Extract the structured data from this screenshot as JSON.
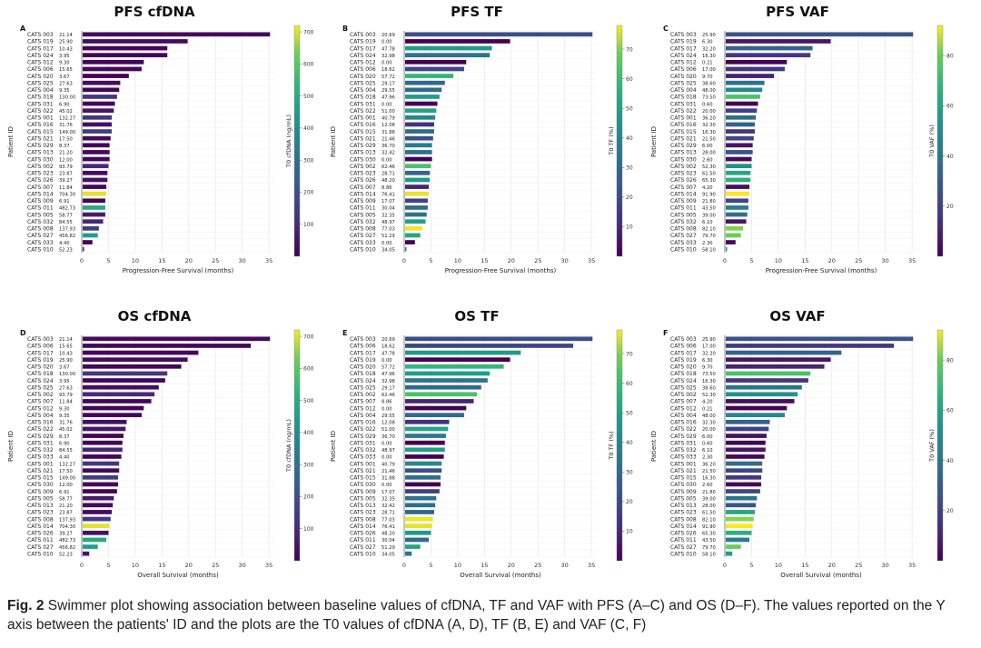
{
  "caption": {
    "label": "Fig. 2",
    "text": "Swimmer plot showing association between baseline values of cfDNA, TF and VAF with PFS (A–C) and OS (D–F). The values reported on the Y axis between the patients' ID and the plots are the T0 values of cfDNA (A, D), TF (B, E) and VAF (C, F)"
  },
  "chart_data": [
    {
      "type": "bar",
      "orientation": "horizontal",
      "panel": "A",
      "title": "PFS cfDNA",
      "xlabel": "Progression-Free Survival (months)",
      "ylabel": "Patient ID",
      "xlim": [
        0,
        36
      ],
      "xticks": [
        0,
        5,
        10,
        15,
        20,
        25,
        30,
        35
      ],
      "colorbar": {
        "label": "T0 cfDNA (ng/mL)",
        "min": 0,
        "max": 720,
        "ticks": [
          100,
          200,
          300,
          400,
          500,
          600,
          700
        ]
      },
      "categories": [
        "CATS 003",
        "CATS 019",
        "CATS 017",
        "CATS 024",
        "CATS 012",
        "CATS 006",
        "CATS 020",
        "CATS 025",
        "CATS 004",
        "CATS 018",
        "CATS 031",
        "CATS 022",
        "CATS 001",
        "CATS 016",
        "CATS 015",
        "CATS 021",
        "CATS 029",
        "CATS 013",
        "CATS 030",
        "CATS 002",
        "CATS 023",
        "CATS 026",
        "CATS 007",
        "CATS 014",
        "CATS 009",
        "CATS 011",
        "CATS 005",
        "CATS 032",
        "CATS 008",
        "CATS 027",
        "CATS 033",
        "CATS 010"
      ],
      "values": [
        35.2,
        19.8,
        16.0,
        16.0,
        11.6,
        11.2,
        8.8,
        7.2,
        7.0,
        6.6,
        6.2,
        6.0,
        5.6,
        5.6,
        5.6,
        5.4,
        5.2,
        5.2,
        5.2,
        5.0,
        4.8,
        4.8,
        4.6,
        4.6,
        4.4,
        4.4,
        4.4,
        4.0,
        3.2,
        3.0,
        2.0,
        0.3
      ],
      "t0_values": [
        "21.14",
        "25.90",
        "10.43",
        "3.95",
        "9.30",
        "15.65",
        "3.67",
        "27.63",
        "9.35",
        "130.00",
        "6.90",
        "45.02",
        "132.27",
        "31.76",
        "149.00",
        "17.50",
        "8.37",
        "21.20",
        "12.00",
        "93.79",
        "23.87",
        "39.27",
        "11.84",
        "704.30",
        "6.91",
        "482.73",
        "58.77",
        "84.55",
        "137.93",
        "456.82",
        "4.40",
        "52.23"
      ]
    },
    {
      "type": "bar",
      "orientation": "horizontal",
      "panel": "B",
      "title": "PFS TF",
      "xlabel": "Progression-Free Survival (months)",
      "ylabel": "Patient ID",
      "xlim": [
        0,
        36
      ],
      "xticks": [
        0,
        5,
        10,
        15,
        20,
        25,
        30,
        35
      ],
      "colorbar": {
        "label": "T0 TF (%)",
        "min": 0,
        "max": 78,
        "ticks": [
          10,
          20,
          30,
          40,
          50,
          60,
          70
        ]
      },
      "categories": [
        "CATS 003",
        "CATS 019",
        "CATS 017",
        "CATS 024",
        "CATS 012",
        "CATS 006",
        "CATS 020",
        "CATS 025",
        "CATS 004",
        "CATS 018",
        "CATS 031",
        "CATS 022",
        "CATS 001",
        "CATS 016",
        "CATS 015",
        "CATS 021",
        "CATS 029",
        "CATS 013",
        "CATS 030",
        "CATS 002",
        "CATS 023",
        "CATS 026",
        "CATS 007",
        "CATS 014",
        "CATS 009",
        "CATS 011",
        "CATS 005",
        "CATS 032",
        "CATS 008",
        "CATS 027",
        "CATS 033",
        "CATS 010"
      ],
      "values": [
        35.2,
        19.8,
        16.4,
        16.0,
        11.6,
        11.2,
        9.2,
        7.6,
        7.0,
        6.6,
        6.2,
        6.0,
        5.8,
        5.6,
        5.6,
        5.4,
        5.2,
        5.2,
        5.2,
        5.0,
        4.8,
        4.8,
        4.6,
        4.6,
        4.4,
        4.4,
        4.2,
        4.0,
        3.4,
        3.0,
        2.0,
        0.3
      ],
      "t0_values": [
        "20.69",
        "0.00",
        "47.78",
        "32.98",
        "0.00",
        "18.62",
        "57.72",
        "29.17",
        "29.55",
        "47.96",
        "0.00",
        "51.00",
        "40.79",
        "12.08",
        "31.88",
        "21.46",
        "36.70",
        "32.42",
        "0.00",
        "62.46",
        "28.71",
        "48.20",
        "8.86",
        "76.41",
        "17.07",
        "30.04",
        "32.35",
        "48.97",
        "77.03",
        "51.29",
        "0.00",
        "34.05"
      ]
    },
    {
      "type": "bar",
      "orientation": "horizontal",
      "panel": "C",
      "title": "PFS VAF",
      "xlabel": "Progression-Free Survival (months)",
      "ylabel": "Patient ID",
      "xlim": [
        0,
        36
      ],
      "xticks": [
        0,
        5,
        10,
        15,
        20,
        25,
        30,
        35
      ],
      "colorbar": {
        "label": "T0 VAF (%)",
        "min": 0,
        "max": 92,
        "ticks": [
          20,
          40,
          60,
          80
        ]
      },
      "categories": [
        "CATS 003",
        "CATS 019",
        "CATS 017",
        "CATS 024",
        "CATS 012",
        "CATS 006",
        "CATS 020",
        "CATS 025",
        "CATS 004",
        "CATS 018",
        "CATS 031",
        "CATS 022",
        "CATS 001",
        "CATS 016",
        "CATS 015",
        "CATS 021",
        "CATS 029",
        "CATS 013",
        "CATS 030",
        "CATS 002",
        "CATS 023",
        "CATS 026",
        "CATS 007",
        "CATS 014",
        "CATS 009",
        "CATS 011",
        "CATS 005",
        "CATS 032",
        "CATS 008",
        "CATS 027",
        "CATS 033",
        "CATS 010"
      ],
      "values": [
        35.2,
        19.8,
        16.4,
        16.0,
        11.6,
        11.2,
        9.2,
        7.4,
        7.0,
        6.6,
        6.2,
        6.0,
        5.8,
        5.6,
        5.6,
        5.4,
        5.2,
        5.2,
        5.0,
        5.0,
        4.8,
        4.8,
        4.6,
        4.6,
        4.4,
        4.4,
        4.2,
        4.0,
        3.4,
        3.0,
        2.0,
        0.3
      ],
      "t0_values": [
        "25.90",
        "6.30",
        "32.20",
        "16.30",
        "0.21",
        "17.00",
        "9.70",
        "38.60",
        "48.00",
        "73.50",
        "0.60",
        "20.00",
        "36.20",
        "32.30",
        "16.30",
        "21.50",
        "6.00",
        "28.00",
        "2.60",
        "52.30",
        "61.50",
        "65.30",
        "4.20",
        "91.90",
        "21.80",
        "43.50",
        "39.00",
        "6.10",
        "82.10",
        "79.70",
        "2.30",
        "58.10"
      ]
    },
    {
      "type": "bar",
      "orientation": "horizontal",
      "panel": "D",
      "title": "OS cfDNA",
      "xlabel": "Overall Survival (months)",
      "ylabel": "Patient ID",
      "xlim": [
        0,
        36
      ],
      "xticks": [
        0,
        5,
        10,
        15,
        20,
        25,
        30,
        35
      ],
      "colorbar": {
        "label": "T0 cfDNA (ng/mL)",
        "min": 0,
        "max": 720,
        "ticks": [
          100,
          200,
          300,
          400,
          500,
          600,
          700
        ]
      },
      "categories": [
        "CATS 003",
        "CATS 006",
        "CATS 017",
        "CATS 019",
        "CATS 020",
        "CATS 018",
        "CATS 024",
        "CATS 025",
        "CATS 002",
        "CATS 007",
        "CATS 012",
        "CATS 004",
        "CATS 016",
        "CATS 022",
        "CATS 029",
        "CATS 031",
        "CATS 032",
        "CATS 033",
        "CATS 001",
        "CATS 021",
        "CATS 015",
        "CATS 030",
        "CATS 009",
        "CATS 005",
        "CATS 013",
        "CATS 023",
        "CATS 008",
        "CATS 014",
        "CATS 026",
        "CATS 011",
        "CATS 027",
        "CATS 010"
      ],
      "values": [
        35.2,
        31.6,
        21.8,
        19.8,
        18.6,
        16.0,
        15.6,
        14.4,
        13.6,
        13.0,
        11.6,
        11.2,
        8.4,
        8.2,
        7.8,
        7.6,
        7.6,
        7.4,
        7.0,
        7.0,
        6.8,
        6.8,
        6.6,
        6.0,
        5.8,
        5.6,
        5.4,
        5.2,
        5.0,
        4.6,
        3.0,
        1.4
      ],
      "t0_values": [
        "21.14",
        "15.65",
        "10.43",
        "25.90",
        "3.67",
        "130.00",
        "3.95",
        "27.63",
        "93.79",
        "11.84",
        "9.30",
        "9.35",
        "31.76",
        "45.02",
        "8.37",
        "6.90",
        "84.55",
        "4.40",
        "132.27",
        "17.50",
        "149.00",
        "12.00",
        "6.91",
        "58.77",
        "21.20",
        "23.87",
        "137.93",
        "704.30",
        "39.27",
        "482.73",
        "456.82",
        "52.23"
      ]
    },
    {
      "type": "bar",
      "orientation": "horizontal",
      "panel": "E",
      "title": "OS TF",
      "xlabel": "Overall Survival (months)",
      "ylabel": "Patient ID",
      "xlim": [
        0,
        36
      ],
      "xticks": [
        0,
        5,
        10,
        15,
        20,
        25,
        30,
        35
      ],
      "colorbar": {
        "label": "T0 TF (%)",
        "min": 0,
        "max": 78,
        "ticks": [
          10,
          20,
          30,
          40,
          50,
          60,
          70
        ]
      },
      "categories": [
        "CATS 003",
        "CATS 006",
        "CATS 017",
        "CATS 019",
        "CATS 020",
        "CATS 018",
        "CATS 024",
        "CATS 025",
        "CATS 002",
        "CATS 007",
        "CATS 012",
        "CATS 004",
        "CATS 016",
        "CATS 022",
        "CATS 029",
        "CATS 031",
        "CATS 032",
        "CATS 033",
        "CATS 001",
        "CATS 021",
        "CATS 015",
        "CATS 030",
        "CATS 009",
        "CATS 005",
        "CATS 013",
        "CATS 023",
        "CATS 008",
        "CATS 014",
        "CATS 026",
        "CATS 011",
        "CATS 027",
        "CATS 010"
      ],
      "values": [
        35.2,
        31.6,
        21.8,
        19.8,
        18.6,
        16.0,
        15.6,
        14.4,
        13.6,
        13.0,
        11.6,
        11.2,
        8.4,
        8.2,
        7.8,
        7.6,
        7.6,
        7.4,
        7.0,
        7.0,
        6.8,
        6.8,
        6.6,
        6.0,
        5.8,
        5.6,
        5.4,
        5.2,
        5.0,
        4.6,
        3.0,
        1.4
      ],
      "t0_values": [
        "20.69",
        "18.62",
        "47.78",
        "0.00",
        "57.72",
        "47.96",
        "32.98",
        "29.17",
        "62.46",
        "8.86",
        "0.00",
        "29.55",
        "12.08",
        "51.00",
        "36.70",
        "0.00",
        "48.97",
        "0.00",
        "40.79",
        "21.46",
        "31.88",
        "0.00",
        "17.07",
        "32.35",
        "32.42",
        "28.71",
        "77.03",
        "76.41",
        "48.20",
        "30.04",
        "51.29",
        "34.05"
      ]
    },
    {
      "type": "bar",
      "orientation": "horizontal",
      "panel": "F",
      "title": "OS VAF",
      "xlabel": "Overall Survival (months)",
      "ylabel": "Patient ID",
      "xlim": [
        0,
        36
      ],
      "xticks": [
        0,
        5,
        10,
        15,
        20,
        25,
        30,
        35
      ],
      "colorbar": {
        "label": "T0 VAF (%)",
        "min": 0,
        "max": 92,
        "ticks": [
          20,
          40,
          60,
          80
        ]
      },
      "categories": [
        "CATS 003",
        "CATS 006",
        "CATS 017",
        "CATS 019",
        "CATS 020",
        "CATS 018",
        "CATS 024",
        "CATS 025",
        "CATS 002",
        "CATS 007",
        "CATS 012",
        "CATS 004",
        "CATS 016",
        "CATS 022",
        "CATS 029",
        "CATS 031",
        "CATS 032",
        "CATS 033",
        "CATS 001",
        "CATS 021",
        "CATS 015",
        "CATS 030",
        "CATS 009",
        "CATS 005",
        "CATS 013",
        "CATS 023",
        "CATS 008",
        "CATS 014",
        "CATS 026",
        "CATS 011",
        "CATS 027",
        "CATS 010"
      ],
      "values": [
        35.2,
        31.6,
        21.8,
        19.8,
        18.6,
        16.0,
        15.6,
        14.4,
        13.6,
        13.0,
        11.6,
        11.2,
        8.4,
        8.2,
        7.8,
        7.6,
        7.6,
        7.4,
        7.0,
        7.0,
        6.8,
        6.8,
        6.6,
        6.0,
        5.8,
        5.6,
        5.4,
        5.2,
        5.0,
        4.6,
        3.0,
        1.4
      ],
      "t0_values": [
        "25.90",
        "17.00",
        "32.20",
        "6.30",
        "9.70",
        "73.50",
        "16.30",
        "38.60",
        "52.30",
        "4.20",
        "0.21",
        "48.00",
        "32.30",
        "20.00",
        "6.00",
        "0.60",
        "6.10",
        "2.30",
        "36.20",
        "21.50",
        "16.30",
        "2.60",
        "21.80",
        "39.00",
        "28.00",
        "61.50",
        "82.10",
        "91.90",
        "65.30",
        "43.50",
        "79.70",
        "58.10"
      ]
    }
  ]
}
